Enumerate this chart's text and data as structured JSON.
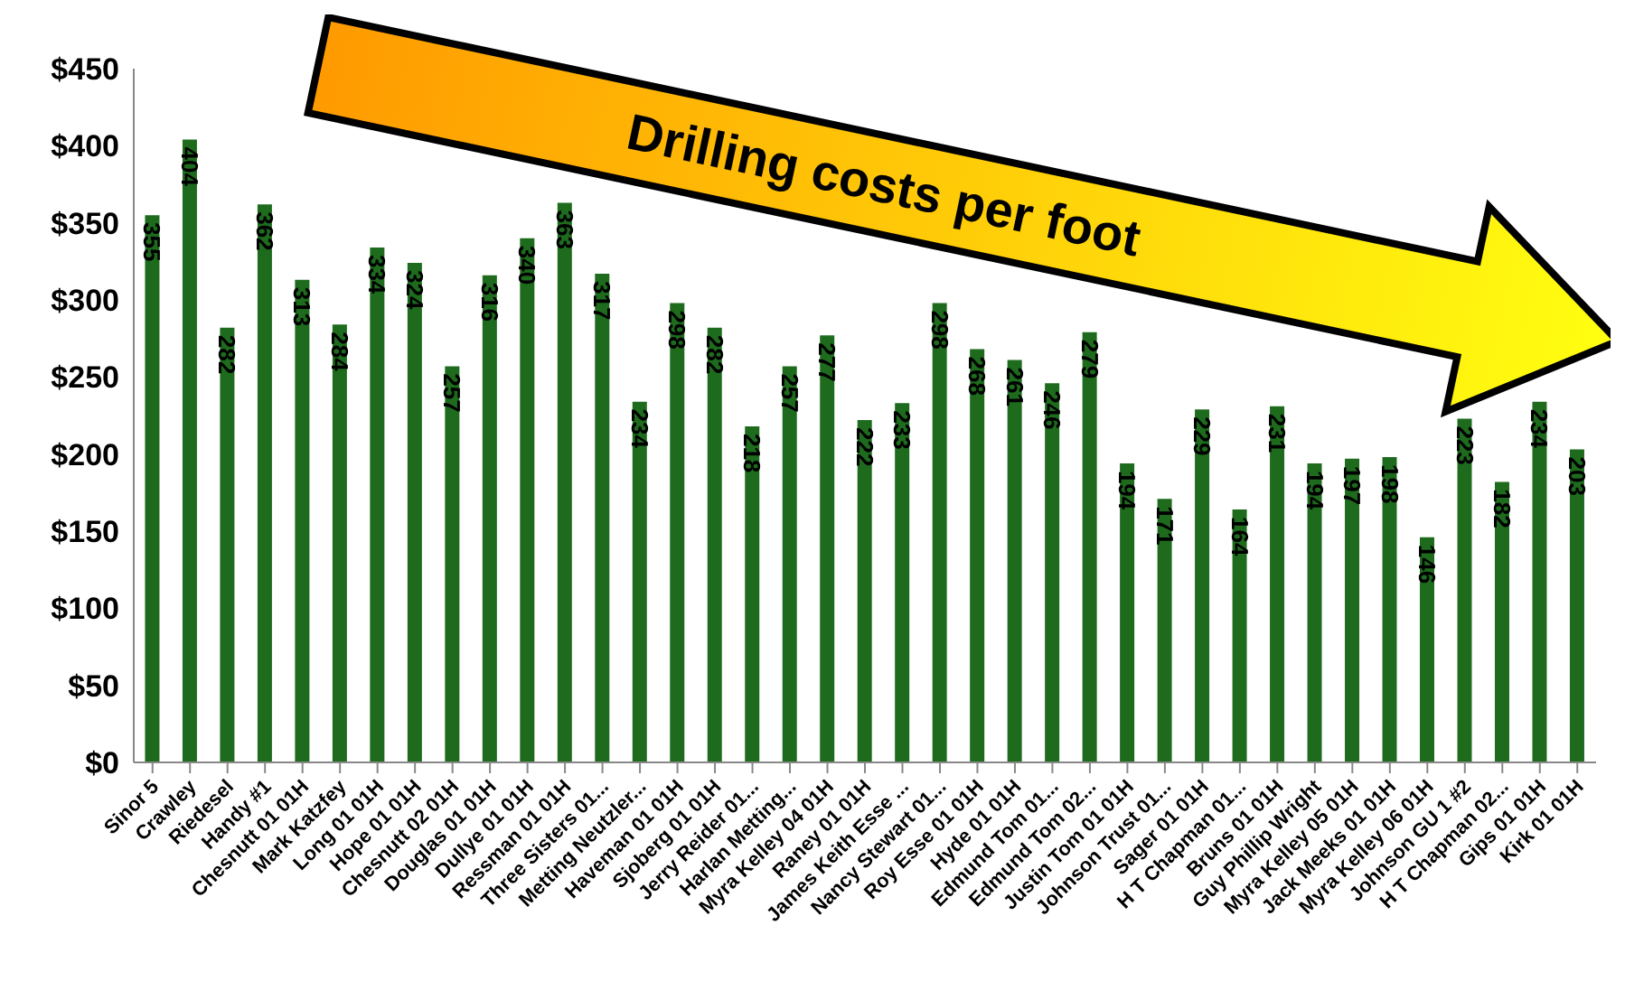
{
  "chart_data": {
    "type": "bar",
    "title": "Drilling costs per foot",
    "categories": [
      "Sinor 5",
      "Crawley",
      "Riedesel",
      "Handy #1",
      "Chesnutt 01 01H",
      "Mark Katzfey",
      "Long 01 01H",
      "Hope 01 01H",
      "Chesnutt 02 01H",
      "Douglas 01 01H",
      "Dullye 01 01H",
      "Ressman 01 01H",
      "Three Sisters 01...",
      "Metting Neutzler...",
      "Haveman 01 01H",
      "Sjoberg 01 01H",
      "Jerry Reider 01...",
      "Harlan Metting...",
      "Myra Kelley 04 01H",
      "Raney 01 01H",
      "James Keith Esse ...",
      "Nancy Stewart 01...",
      "Roy Esse 01 01H",
      "Hyde 01 01H",
      "Edmund Tom 01...",
      "Edmund Tom 02...",
      "Justin Tom 01 01H",
      "Johnson Trust 01...",
      "Sager 01 01H",
      "H T Chapman 01...",
      "Bruns 01 01H",
      "Guy Phillip Wright",
      "Myra Kelley 05 01H",
      "Jack Meeks 01 01H",
      "Myra Kelley 06 01H",
      "Johnson GU 1 #2",
      "H T Chapman 02...",
      "Gips 01 01H",
      "Kirk 01 01H"
    ],
    "values": [
      355,
      404,
      282,
      362,
      313,
      284,
      334,
      324,
      257,
      316,
      340,
      363,
      317,
      234,
      298,
      282,
      218,
      257,
      277,
      222,
      233,
      298,
      268,
      261,
      246,
      279,
      194,
      171,
      229,
      164,
      231,
      194,
      197,
      198,
      146,
      223,
      182,
      234,
      203
    ],
    "color": "#1e6b1e",
    "ylim": [
      0,
      450
    ],
    "yticks": [
      {
        "value": 0,
        "label": "$0"
      },
      {
        "value": 50,
        "label": "$50"
      },
      {
        "value": 100,
        "label": "$100"
      },
      {
        "value": 150,
        "label": "$150"
      },
      {
        "value": 200,
        "label": "$200"
      },
      {
        "value": 250,
        "label": "$250"
      },
      {
        "value": 300,
        "label": "$300"
      },
      {
        "value": 350,
        "label": "$350"
      },
      {
        "value": 400,
        "label": "$400"
      },
      {
        "value": 450,
        "label": "$450"
      }
    ],
    "grid": false,
    "data_labels": true
  }
}
